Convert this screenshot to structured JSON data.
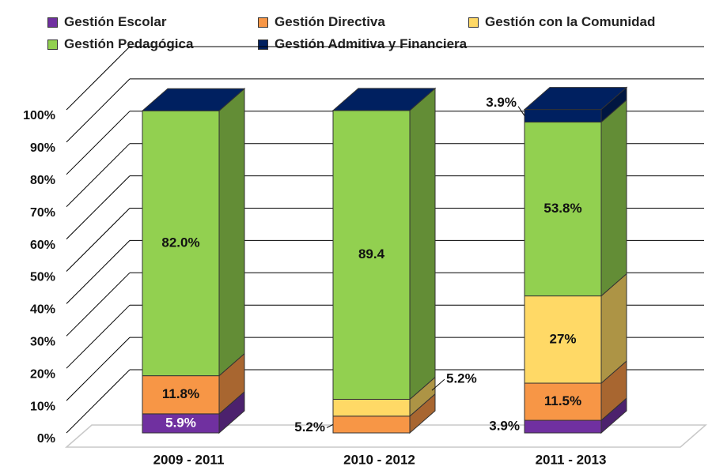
{
  "chart_data": {
    "type": "bar",
    "stacked": true,
    "style": "3d",
    "categories": [
      "2009 - 2011",
      "2010 - 2012",
      "2011 - 2013"
    ],
    "ylim": [
      0,
      100
    ],
    "y_ticks": [
      "0%",
      "10%",
      "20%",
      "30%",
      "40%",
      "50%",
      "60%",
      "70%",
      "80%",
      "90%",
      "100%"
    ],
    "grid": true,
    "legend_position": "top",
    "series": [
      {
        "name": "Gestión Escolar",
        "color": "#7030A0",
        "values": [
          5.9,
          0,
          3.9
        ],
        "labels": [
          "5.9%",
          "",
          "3.9%"
        ]
      },
      {
        "name": "Gestión Directiva",
        "color": "#F79646",
        "values": [
          11.8,
          5.2,
          11.5
        ],
        "labels": [
          "11.8%",
          "5.2%",
          "11.5%"
        ]
      },
      {
        "name": "Gestión con la Comunidad",
        "color": "#FFD966",
        "values": [
          0,
          5.2,
          27
        ],
        "labels": [
          "",
          "5.2%",
          "27%"
        ]
      },
      {
        "name": "Gestión Pedagógica",
        "color": "#92D050",
        "values": [
          82.0,
          89.4,
          53.8
        ],
        "labels": [
          "82.0%",
          "89.4",
          "53.8%"
        ]
      },
      {
        "name": "Gestión Admitiva y Financiera",
        "color": "#002060",
        "values": [
          0,
          0,
          3.9
        ],
        "labels": [
          "",
          "",
          "3.9%"
        ]
      }
    ]
  }
}
